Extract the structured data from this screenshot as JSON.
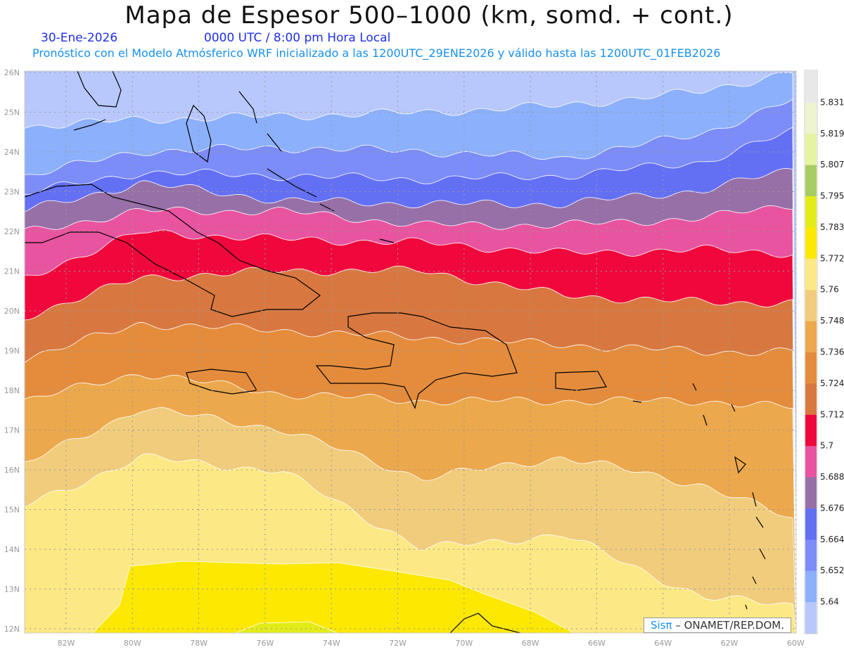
{
  "title": "Mapa de Espesor 500–1000 (km, somd. + cont.)",
  "date": "30-Ene-2026",
  "time": "0000 UTC / 8:00 pm Hora Local",
  "subtitle": "Pronóstico con el Modelo Atmósferico WRF inicializado a las 1200UTC_29ENE2026 y válido hasta las  1200UTC_01FEB2026",
  "lat_labels": [
    "12N",
    "13N",
    "14N",
    "15N",
    "16N",
    "17N",
    "18N",
    "19N",
    "20N",
    "21N",
    "22N",
    "23N",
    "24N",
    "25N",
    "26N"
  ],
  "lon_labels": [
    "82W",
    "80W",
    "78W",
    "76W",
    "74W",
    "72W",
    "70W",
    "68W",
    "66W",
    "64W",
    "62W",
    "60W"
  ],
  "colorbar": {
    "levels": [
      "5.64",
      "5.652",
      "5.664",
      "5.676",
      "5.688",
      "5.7",
      "5.712",
      "5.724",
      "5.736",
      "5.748",
      "5.76",
      "5.772",
      "5.783",
      "5.795",
      "5.807",
      "5.819",
      "5.831"
    ],
    "colors": [
      "#b8c8fc",
      "#8cb0fc",
      "#7c8cf8",
      "#6470f4",
      "#9870a8",
      "#e854a0",
      "#f0083c",
      "#d87840",
      "#e48c3c",
      "#eca84c",
      "#f0cc7c",
      "#fce884",
      "#fce800",
      "#e4ec18",
      "#a8cc64",
      "#e4f4a0",
      "#eef4d0",
      "#e8e8e8"
    ]
  },
  "credit": {
    "brand": "Sisπ",
    "text": " –  ONAMET/REP.DOM."
  }
}
